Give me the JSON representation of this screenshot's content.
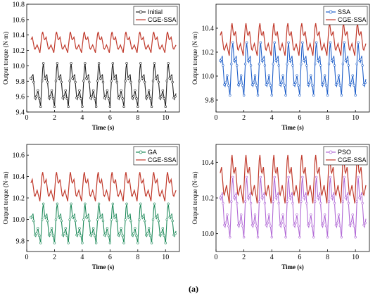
{
  "caption": "(a)",
  "colors": {
    "cge": "#c0392b",
    "initial": "#222222",
    "ssa": "#1f5fc9",
    "ga": "#1e8a5a",
    "pso": "#b26bd6"
  },
  "chart_data": [
    {
      "type": "line",
      "panel": "top-left",
      "xlabel": "Time (s)",
      "ylabel": "Output torque (N·m)",
      "xlim": [
        0,
        11
      ],
      "ylim": [
        9.4,
        10.8
      ],
      "xticks": [
        0,
        2,
        4,
        6,
        8,
        10
      ],
      "yticks": [
        9.4,
        9.6,
        9.8,
        10.0,
        10.2,
        10.4,
        10.6,
        10.8
      ],
      "legend_position": "top-right",
      "series": [
        {
          "name": "Initial",
          "color": "#222222",
          "period": 1.0,
          "min": 9.47,
          "max": 10.07,
          "markers": true
        },
        {
          "name": "CGE-SSA",
          "color": "#c0392b",
          "period": 1.0,
          "min": 10.17,
          "max": 10.46,
          "markers": false
        }
      ]
    },
    {
      "type": "line",
      "panel": "top-right",
      "xlabel": "Time (s)",
      "ylabel": "Output torque (N·m)",
      "xlim": [
        0,
        11
      ],
      "ylim": [
        9.7,
        10.6
      ],
      "xticks": [
        0,
        2,
        4,
        6,
        8,
        10
      ],
      "yticks": [
        9.8,
        10.0,
        10.2,
        10.4
      ],
      "legend_position": "top-right",
      "series": [
        {
          "name": "SSA",
          "color": "#1f5fc9",
          "period": 1.0,
          "min": 9.84,
          "max": 10.31,
          "markers": true
        },
        {
          "name": "CGE-SSA",
          "color": "#c0392b",
          "period": 1.0,
          "min": 10.17,
          "max": 10.46,
          "markers": false
        }
      ]
    },
    {
      "type": "line",
      "panel": "bottom-left",
      "xlabel": "Time (s)",
      "ylabel": "Output torque (N·m)",
      "xlim": [
        0,
        11
      ],
      "ylim": [
        9.7,
        10.7
      ],
      "xticks": [
        0,
        2,
        4,
        6,
        8,
        10
      ],
      "yticks": [
        9.8,
        10.0,
        10.2,
        10.4,
        10.6
      ],
      "legend_position": "top-right",
      "series": [
        {
          "name": "GA",
          "color": "#1e8a5a",
          "period": 1.0,
          "min": 9.78,
          "max": 10.17,
          "markers": true
        },
        {
          "name": "CGE-SSA",
          "color": "#c0392b",
          "period": 1.0,
          "min": 10.17,
          "max": 10.46,
          "markers": false
        }
      ]
    },
    {
      "type": "line",
      "panel": "bottom-right",
      "xlabel": "Time (s)",
      "ylabel": "Output torque (N·m)",
      "xlim": [
        0,
        11
      ],
      "ylim": [
        9.9,
        10.5
      ],
      "xticks": [
        0,
        2,
        4,
        6,
        8,
        10
      ],
      "yticks": [
        10.0,
        10.2,
        10.4
      ],
      "legend_position": "top-right",
      "series": [
        {
          "name": "PSO",
          "color": "#b26bd6",
          "period": 1.0,
          "min": 9.98,
          "max": 10.34,
          "markers": true
        },
        {
          "name": "CGE-SSA",
          "color": "#c0392b",
          "period": 1.0,
          "min": 10.17,
          "max": 10.46,
          "markers": false
        }
      ]
    }
  ]
}
